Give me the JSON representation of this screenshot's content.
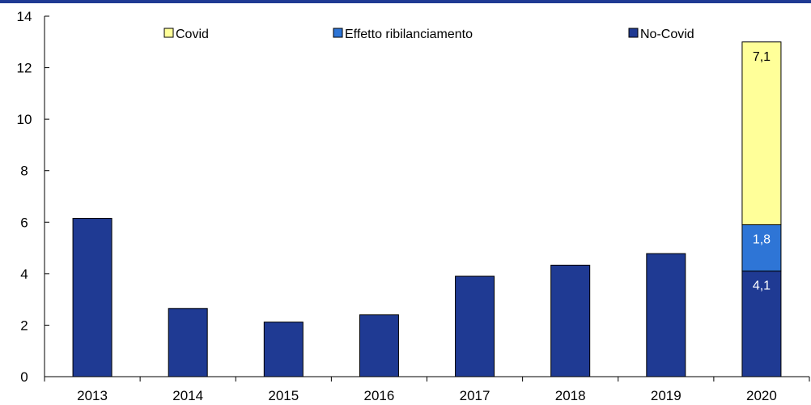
{
  "chart_data": {
    "type": "bar",
    "stacked": true,
    "categories": [
      "2013",
      "2014",
      "2015",
      "2016",
      "2017",
      "2018",
      "2019",
      "2020"
    ],
    "series": [
      {
        "name": "No-Covid",
        "color": "#1f3a93",
        "values": [
          6.15,
          2.65,
          2.12,
          2.4,
          3.9,
          4.33,
          4.78,
          4.1
        ]
      },
      {
        "name": "Effetto ribilanciamento",
        "color": "#2e75d6",
        "values": [
          0,
          0,
          0,
          0,
          0,
          0,
          0,
          1.8
        ]
      },
      {
        "name": "Covid",
        "color": "#ffff99",
        "values": [
          0,
          0,
          0,
          0,
          0,
          0,
          0,
          7.1
        ]
      }
    ],
    "data_labels": [
      {
        "category": "2020",
        "series": "No-Covid",
        "text": "4,1"
      },
      {
        "category": "2020",
        "series": "Effetto ribilanciamento",
        "text": "1,8"
      },
      {
        "category": "2020",
        "series": "Covid",
        "text": "7,1"
      }
    ],
    "legend_order": [
      "Covid",
      "Effetto ribilanciamento",
      "No-Covid"
    ],
    "legend_placement": "top",
    "ylim": [
      0,
      14
    ],
    "yticks": [
      0,
      2,
      4,
      6,
      8,
      10,
      12,
      14
    ],
    "grid": false,
    "title": "",
    "xlabel": "",
    "ylabel": ""
  }
}
